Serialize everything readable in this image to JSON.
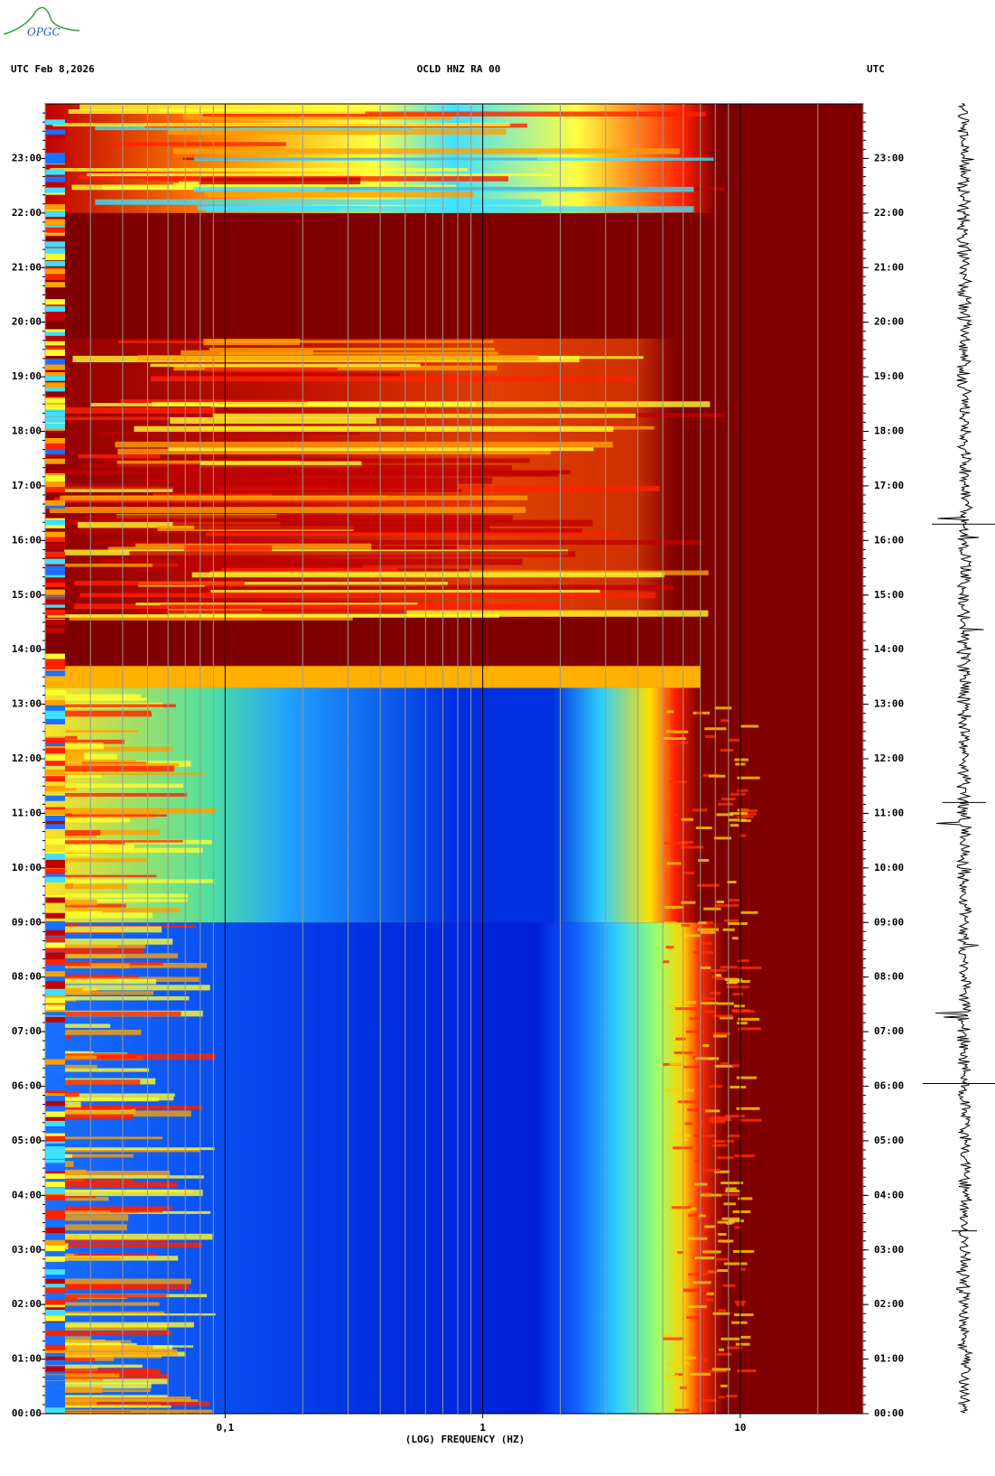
{
  "logo": "OPGC",
  "chart_data": {
    "type": "spectrogram",
    "header_left": "UTC  Feb 8,2026",
    "title": "OCLD HNZ RA 00",
    "header_right": "UTC",
    "x_label": "(LOG) FREQUENCY (HZ)",
    "x_log": true,
    "xlim": [
      0.02,
      30
    ],
    "xticks": [
      {
        "value": 0.1,
        "label": "0,1"
      },
      1,
      10
    ],
    "ylim": [
      0,
      24
    ],
    "yticks": [
      {
        "value": 0,
        "label": "00:00"
      },
      {
        "value": 1,
        "label": "01:00"
      },
      {
        "value": 2,
        "label": "02:00"
      },
      {
        "value": 3,
        "label": "03:00"
      },
      {
        "value": 4,
        "label": "04:00"
      },
      {
        "value": 5,
        "label": "05:00"
      },
      {
        "value": 6,
        "label": "06:00"
      },
      {
        "value": 7,
        "label": "07:00"
      },
      {
        "value": 8,
        "label": "08:00"
      },
      {
        "value": 9,
        "label": "09:00"
      },
      {
        "value": 10,
        "label": "10:00"
      },
      {
        "value": 11,
        "label": "11:00"
      },
      {
        "value": 12,
        "label": "12:00"
      },
      {
        "value": 13,
        "label": "13:00"
      },
      {
        "value": 14,
        "label": "14:00"
      },
      {
        "value": 15,
        "label": "15:00"
      },
      {
        "value": 16,
        "label": "16:00"
      },
      {
        "value": 17,
        "label": "17:00"
      },
      {
        "value": 18,
        "label": "18:00"
      },
      {
        "value": 19,
        "label": "19:00"
      },
      {
        "value": 20,
        "label": "20:00"
      },
      {
        "value": 21,
        "label": "21:00"
      },
      {
        "value": 22,
        "label": "22:00"
      },
      {
        "value": 23,
        "label": "23:00"
      }
    ],
    "grid": true
  }
}
